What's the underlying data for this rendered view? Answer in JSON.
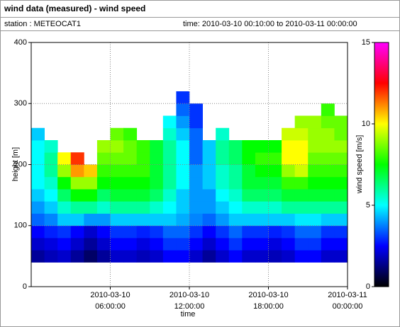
{
  "chart_data": {
    "type": "heatmap",
    "title": "wind data (measured) - wind speed",
    "station": "station : METEOCAT1",
    "period": "time: 2010-03-10 00:10:00 to 2010-03-11 00:00:00",
    "xlabel": "time",
    "ylabel": "height [m]",
    "zlabel": "wind speed [m/s]",
    "xlim": [
      "2010-03-10 00:00:00",
      "2010-03-11 00:00:00"
    ],
    "xticks": [
      "2010-03-10 06:00:00",
      "2010-03-10 12:00:00",
      "2010-03-10 18:00:00",
      "2010-03-11 00:00:00"
    ],
    "ylim": [
      0,
      400
    ],
    "yticks": [
      0,
      100,
      200,
      300,
      400
    ],
    "zlim": [
      0,
      15
    ],
    "zticks": [
      0,
      5,
      10,
      15
    ],
    "colormap": [
      "#000000",
      "#0000ff",
      "#00ffff",
      "#00ff00",
      "#ffff00",
      "#ff0000",
      "#ff00ff"
    ],
    "grid": true,
    "x": [
      "2010-03-10 00:30:00",
      "2010-03-10 01:30:00",
      "2010-03-10 02:30:00",
      "2010-03-10 03:30:00",
      "2010-03-10 04:30:00",
      "2010-03-10 05:30:00",
      "2010-03-10 06:30:00",
      "2010-03-10 07:30:00",
      "2010-03-10 08:30:00",
      "2010-03-10 09:30:00",
      "2010-03-10 10:30:00",
      "2010-03-10 11:30:00",
      "2010-03-10 12:30:00",
      "2010-03-10 13:30:00",
      "2010-03-10 14:30:00",
      "2010-03-10 15:30:00",
      "2010-03-10 16:30:00",
      "2010-03-10 17:30:00",
      "2010-03-10 18:30:00",
      "2010-03-10 19:30:00",
      "2010-03-10 20:30:00",
      "2010-03-10 21:30:00",
      "2010-03-10 22:30:00",
      "2010-03-10 23:30:00"
    ],
    "y": [
      50,
      70,
      90,
      110,
      130,
      150,
      170,
      190,
      210,
      230,
      250,
      270,
      290,
      310
    ],
    "z": [
      [
        1.5,
        1.8,
        2,
        1.5,
        1,
        1.5,
        2,
        2,
        1.8,
        2,
        2.5,
        2.5,
        2,
        1.5,
        2,
        2.5,
        2,
        2,
        1.8,
        2,
        2.5,
        2.5,
        2,
        2
      ],
      [
        2,
        2.2,
        2.5,
        2,
        1.5,
        2,
        2.5,
        2.5,
        2.2,
        2.5,
        3,
        3,
        2.5,
        2,
        2.5,
        3,
        2.5,
        2.5,
        2.2,
        2.5,
        3,
        3,
        2.5,
        2.5
      ],
      [
        2.5,
        2.8,
        3,
        2.5,
        2,
        2.5,
        3,
        3,
        2.8,
        3,
        3.5,
        3.5,
        3,
        2.5,
        3,
        3.5,
        3,
        3,
        2.8,
        3,
        3.5,
        3.5,
        3,
        3
      ],
      [
        3.5,
        3.8,
        4.5,
        4.5,
        4,
        4,
        4.5,
        4.5,
        4.5,
        4.5,
        4.5,
        4.2,
        3.8,
        3.5,
        4,
        4.5,
        4.5,
        4.5,
        4.5,
        4.5,
        4.8,
        4.8,
        4.5,
        4.5
      ],
      [
        4,
        4.5,
        5.5,
        6,
        6,
        5.5,
        6,
        6,
        6,
        5.5,
        5,
        4.5,
        4,
        4,
        4.5,
        5,
        5.5,
        5.5,
        5.5,
        6,
        6,
        6,
        6,
        6
      ],
      [
        4.5,
        5,
        6.5,
        7.5,
        7.5,
        6.5,
        7,
        7,
        7,
        6.5,
        5.5,
        4.5,
        4,
        4,
        5,
        5.5,
        6.5,
        6.5,
        6.5,
        7,
        7,
        7,
        7,
        7
      ],
      [
        5,
        5.5,
        7.5,
        9,
        9,
        7.5,
        7.5,
        7.5,
        7.5,
        7,
        6,
        5,
        4,
        4.5,
        5.5,
        6,
        7,
        7,
        7,
        8,
        8,
        7.5,
        7.5,
        7.5
      ],
      [
        5,
        6,
        9,
        11,
        10.5,
        8,
        8,
        8,
        8,
        7,
        6,
        5,
        4,
        4.5,
        5.5,
        6,
        7,
        7.5,
        7.5,
        9,
        9.5,
        8,
        8,
        8
      ],
      [
        5,
        6,
        10,
        12,
        null,
        8.5,
        8.5,
        8.5,
        8,
        7,
        6,
        5,
        3.5,
        4.5,
        6,
        6.5,
        7.5,
        8,
        8,
        10,
        10,
        8.5,
        8.5,
        8.5
      ],
      [
        5,
        5.5,
        null,
        null,
        null,
        9,
        9,
        8.5,
        8,
        7,
        6,
        5,
        3.5,
        4.5,
        6,
        6.5,
        7.5,
        7.5,
        7.5,
        10,
        10,
        9,
        9,
        9
      ],
      [
        4.5,
        null,
        null,
        null,
        null,
        null,
        8.5,
        8,
        null,
        null,
        5.5,
        4.5,
        3.5,
        null,
        5.5,
        null,
        null,
        null,
        null,
        9.5,
        9.5,
        9,
        9,
        8.5
      ],
      [
        null,
        null,
        null,
        null,
        null,
        null,
        null,
        null,
        null,
        null,
        5,
        4,
        3,
        null,
        null,
        null,
        null,
        null,
        null,
        null,
        9,
        9,
        8.5,
        8.5
      ],
      [
        null,
        null,
        null,
        null,
        null,
        null,
        null,
        null,
        null,
        null,
        null,
        3.5,
        3,
        null,
        null,
        null,
        null,
        null,
        null,
        null,
        null,
        null,
        8,
        null
      ],
      [
        null,
        null,
        null,
        null,
        null,
        null,
        null,
        null,
        null,
        null,
        null,
        3,
        null,
        null,
        null,
        null,
        null,
        null,
        null,
        null,
        null,
        null,
        null,
        null
      ]
    ]
  }
}
